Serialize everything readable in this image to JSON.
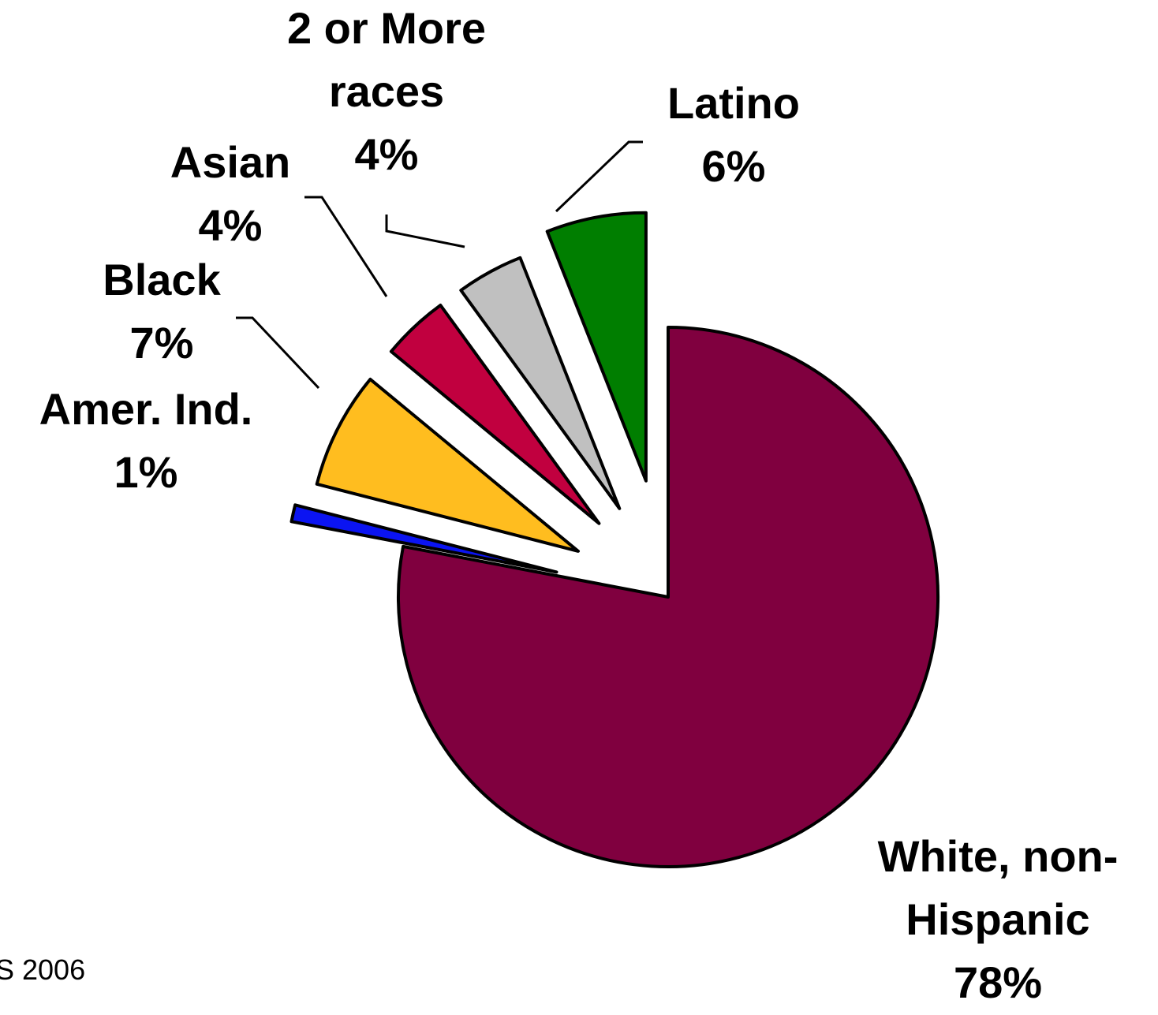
{
  "chart_data": {
    "type": "pie",
    "exploded": true,
    "categories": [
      "White, non-Hispanic",
      "Amer. Ind.",
      "Black",
      "Asian",
      "2 or More races",
      "Latino"
    ],
    "values": [
      78,
      1,
      7,
      4,
      4,
      6
    ],
    "colors": [
      "#80003f",
      "#0b14f2",
      "#ffbd1f",
      "#c1003f",
      "#c0c0c0",
      "#007e00"
    ],
    "labels": [
      {
        "lines": [
          "White, non-",
          "Hispanic",
          "78%"
        ]
      },
      {
        "lines": [
          "Amer. Ind.",
          "1%"
        ]
      },
      {
        "lines": [
          "Black",
          "7%"
        ]
      },
      {
        "lines": [
          "Asian",
          "4%"
        ]
      },
      {
        "lines": [
          "2 or More",
          "races",
          "4%"
        ]
      },
      {
        "lines": [
          "Latino",
          "6%"
        ]
      }
    ]
  },
  "source_note": "S 2006"
}
